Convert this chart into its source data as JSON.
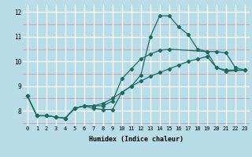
{
  "xlabel": "Humidex (Indice chaleur)",
  "bg_color": "#b8dde8",
  "line_color": "#1e6b5e",
  "grid_color_white": "#ffffff",
  "grid_color_red": "#e8a0a0",
  "xlim": [
    -0.5,
    23.5
  ],
  "ylim": [
    7.4,
    12.3
  ],
  "xticks": [
    0,
    1,
    2,
    3,
    4,
    5,
    6,
    7,
    8,
    9,
    10,
    11,
    12,
    13,
    14,
    15,
    16,
    17,
    18,
    19,
    20,
    21,
    22,
    23
  ],
  "yticks": [
    8,
    9,
    10,
    11,
    12
  ],
  "line1_x": [
    0,
    1,
    2,
    3,
    4,
    5,
    6,
    7,
    8,
    9,
    10,
    11,
    12,
    13,
    14,
    15,
    16,
    17,
    18,
    19,
    20,
    21,
    23
  ],
  "line1_y": [
    8.6,
    7.8,
    7.8,
    7.75,
    7.7,
    8.1,
    8.2,
    8.1,
    8.05,
    8.05,
    8.75,
    9.0,
    9.45,
    11.0,
    11.85,
    11.85,
    11.4,
    11.1,
    10.5,
    10.4,
    9.75,
    9.6,
    9.65
  ],
  "line2_x": [
    0,
    1,
    2,
    3,
    4,
    5,
    6,
    7,
    8,
    9,
    10,
    11,
    12,
    13,
    14,
    15,
    19,
    20,
    21,
    22,
    23
  ],
  "line2_y": [
    8.6,
    7.8,
    7.8,
    7.75,
    7.7,
    8.1,
    8.2,
    8.2,
    8.2,
    8.4,
    9.3,
    9.7,
    10.1,
    10.3,
    10.45,
    10.5,
    10.4,
    10.4,
    10.35,
    9.75,
    9.65
  ],
  "line3_x": [
    0,
    1,
    2,
    3,
    4,
    5,
    6,
    7,
    8,
    9,
    10,
    11,
    12,
    13,
    14,
    15,
    16,
    17,
    18,
    19,
    20,
    21,
    22,
    23
  ],
  "line3_y": [
    8.6,
    7.8,
    7.8,
    7.75,
    7.7,
    8.1,
    8.2,
    8.2,
    8.3,
    8.5,
    8.75,
    9.0,
    9.2,
    9.4,
    9.55,
    9.7,
    9.85,
    10.0,
    10.1,
    10.2,
    9.75,
    9.65,
    9.65,
    9.65
  ]
}
